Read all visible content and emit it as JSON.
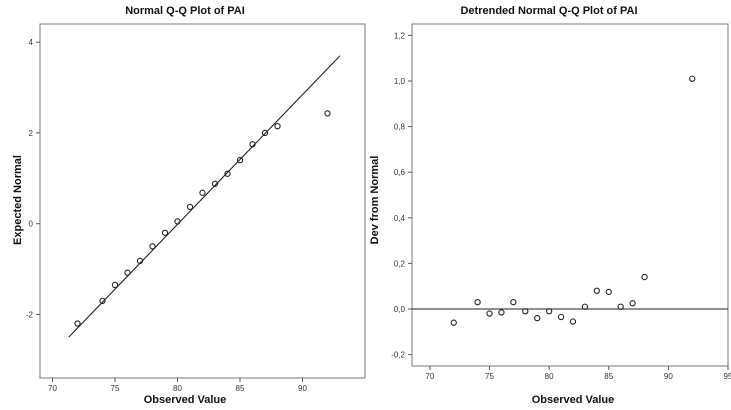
{
  "chart_data": [
    {
      "type": "scatter",
      "title": "Normal Q-Q Plot of PAI",
      "xlabel": "Observed Value",
      "ylabel": "Expected Normal",
      "xlim": [
        69,
        95
      ],
      "ylim": [
        -3.4,
        4.4
      ],
      "xticks": [
        "70",
        "75",
        "80",
        "85",
        "90"
      ],
      "xtick_values": [
        70,
        75,
        80,
        85,
        90
      ],
      "yticks": [
        "-2",
        "0",
        "2",
        "4"
      ],
      "ytick_values": [
        -2,
        0,
        2,
        4
      ],
      "grid": false,
      "reference_line": {
        "x": [
          71.3,
          93.0
        ],
        "y": [
          -2.5,
          3.7
        ]
      },
      "points": [
        {
          "x": 72,
          "y": -2.2
        },
        {
          "x": 74,
          "y": -1.7
        },
        {
          "x": 75,
          "y": -1.35
        },
        {
          "x": 76,
          "y": -1.08
        },
        {
          "x": 77,
          "y": -0.82
        },
        {
          "x": 78,
          "y": -0.5
        },
        {
          "x": 79,
          "y": -0.2
        },
        {
          "x": 80,
          "y": 0.05
        },
        {
          "x": 81,
          "y": 0.37
        },
        {
          "x": 82,
          "y": 0.68
        },
        {
          "x": 83,
          "y": 0.88
        },
        {
          "x": 84,
          "y": 1.1
        },
        {
          "x": 85,
          "y": 1.4
        },
        {
          "x": 86,
          "y": 1.75
        },
        {
          "x": 87,
          "y": 2.0
        },
        {
          "x": 88,
          "y": 2.15
        },
        {
          "x": 92,
          "y": 2.43
        }
      ]
    },
    {
      "type": "scatter",
      "title": "Detrended Normal Q-Q Plot of PAI",
      "xlabel": "Observed Value",
      "ylabel": "Dev from Normal",
      "xlim": [
        68.5,
        95
      ],
      "ylim": [
        -0.25,
        1.25
      ],
      "xticks": [
        "70",
        "75",
        "80",
        "85",
        "90",
        "95"
      ],
      "xtick_values": [
        70,
        75,
        80,
        85,
        90,
        95
      ],
      "yticks": [
        "-0,2",
        "0,0",
        "0,2",
        "0,4",
        "0,6",
        "0,8",
        "1,0",
        "1,2"
      ],
      "ytick_values": [
        -0.2,
        0,
        0.2,
        0.4,
        0.6,
        0.8,
        1.0,
        1.2
      ],
      "grid": false,
      "reference_line": {
        "y": 0
      },
      "points": [
        {
          "x": 72,
          "y": -0.06
        },
        {
          "x": 74,
          "y": 0.03
        },
        {
          "x": 75,
          "y": -0.02
        },
        {
          "x": 76,
          "y": -0.015
        },
        {
          "x": 77,
          "y": 0.03
        },
        {
          "x": 78,
          "y": -0.01
        },
        {
          "x": 79,
          "y": -0.04
        },
        {
          "x": 80,
          "y": -0.01
        },
        {
          "x": 81,
          "y": -0.035
        },
        {
          "x": 82,
          "y": -0.055
        },
        {
          "x": 83,
          "y": 0.01
        },
        {
          "x": 84,
          "y": 0.08
        },
        {
          "x": 85,
          "y": 0.075
        },
        {
          "x": 86,
          "y": 0.01
        },
        {
          "x": 87,
          "y": 0.025
        },
        {
          "x": 88,
          "y": 0.14
        },
        {
          "x": 92,
          "y": 1.01
        }
      ]
    }
  ]
}
